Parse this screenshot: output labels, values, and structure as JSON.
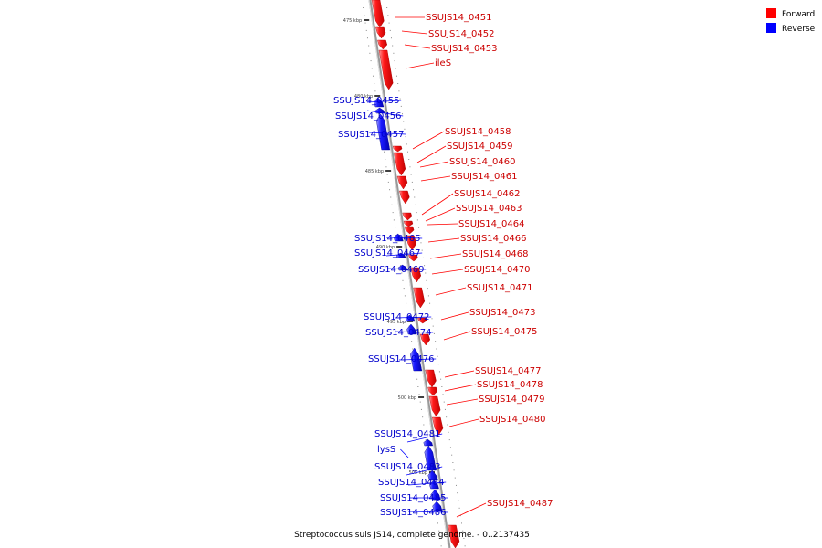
{
  "caption": "Streptococcus suis JS14, complete genome. - 0..2137435",
  "legend": {
    "forward_label": "Forward",
    "reverse_label": "Reverse",
    "forward_color": "#ff0000",
    "reverse_color": "#0000ff"
  },
  "colors": {
    "forward_label": "#cc0000",
    "reverse_label": "#0000cc",
    "backbone": "#999999"
  },
  "ticks": [
    "475 kbp",
    "480 kbp",
    "485 kbp",
    "490 kbp",
    "495 kbp",
    "500 kbp",
    "505 kbp"
  ],
  "genes": [
    {
      "label": "SSUJS14_0451",
      "strand": "forward"
    },
    {
      "label": "SSUJS14_0452",
      "strand": "forward"
    },
    {
      "label": "SSUJS14_0453",
      "strand": "forward"
    },
    {
      "label": "ileS",
      "strand": "forward"
    },
    {
      "label": "SSUJS14_0455",
      "strand": "reverse"
    },
    {
      "label": "SSUJS14_0456",
      "strand": "reverse"
    },
    {
      "label": "SSUJS14_0457",
      "strand": "reverse"
    },
    {
      "label": "SSUJS14_0458",
      "strand": "forward"
    },
    {
      "label": "SSUJS14_0459",
      "strand": "forward"
    },
    {
      "label": "SSUJS14_0460",
      "strand": "forward"
    },
    {
      "label": "SSUJS14_0461",
      "strand": "forward"
    },
    {
      "label": "SSUJS14_0462",
      "strand": "forward"
    },
    {
      "label": "SSUJS14_0463",
      "strand": "forward"
    },
    {
      "label": "SSUJS14_0464",
      "strand": "forward"
    },
    {
      "label": "SSUJS14_0465",
      "strand": "reverse"
    },
    {
      "label": "SSUJS14_0466",
      "strand": "forward"
    },
    {
      "label": "SSUJS14_0467",
      "strand": "reverse"
    },
    {
      "label": "SSUJS14_0468",
      "strand": "forward"
    },
    {
      "label": "SSUJS14_0469",
      "strand": "reverse"
    },
    {
      "label": "SSUJS14_0470",
      "strand": "forward"
    },
    {
      "label": "SSUJS14_0471",
      "strand": "forward"
    },
    {
      "label": "SSUJS14_0472",
      "strand": "reverse"
    },
    {
      "label": "SSUJS14_0473",
      "strand": "forward"
    },
    {
      "label": "SSUJS14_0474",
      "strand": "reverse"
    },
    {
      "label": "SSUJS14_0475",
      "strand": "forward"
    },
    {
      "label": "SSUJS14_0476",
      "strand": "reverse"
    },
    {
      "label": "SSUJS14_0477",
      "strand": "forward"
    },
    {
      "label": "SSUJS14_0478",
      "strand": "forward"
    },
    {
      "label": "SSUJS14_0479",
      "strand": "forward"
    },
    {
      "label": "SSUJS14_0480",
      "strand": "forward"
    },
    {
      "label": "SSUJS14_0481",
      "strand": "reverse"
    },
    {
      "label": "lysS",
      "strand": "reverse"
    },
    {
      "label": "SSUJS14_0483",
      "strand": "reverse"
    },
    {
      "label": "SSUJS14_0484",
      "strand": "reverse"
    },
    {
      "label": "SSUJS14_0485",
      "strand": "reverse"
    },
    {
      "label": "SSUJS14_0486",
      "strand": "reverse"
    },
    {
      "label": "SSUJS14_0487",
      "strand": "forward"
    }
  ]
}
